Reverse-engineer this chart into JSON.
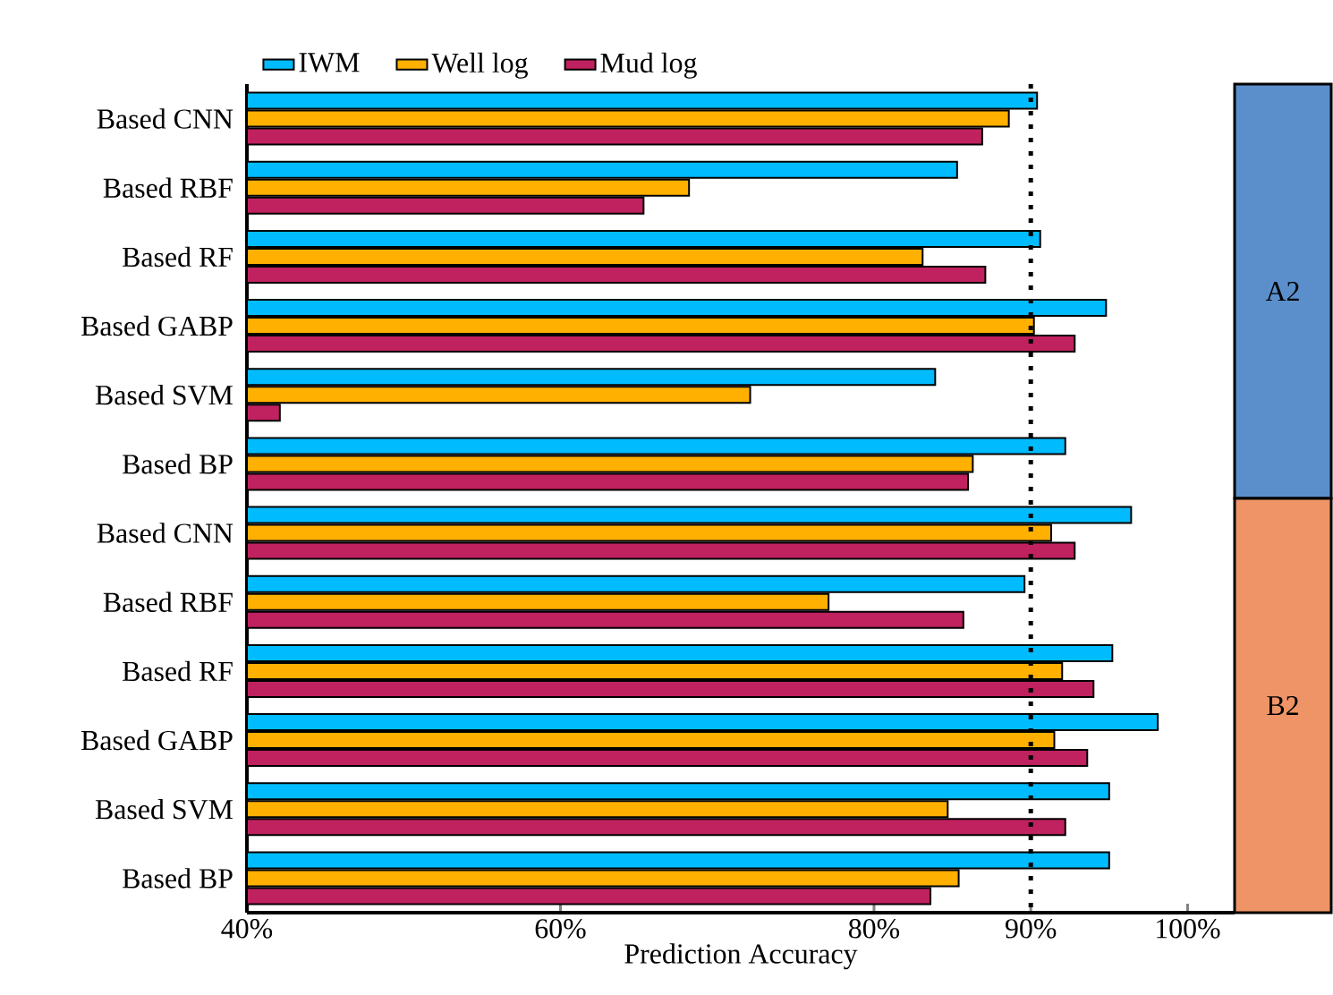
{
  "chart_data": {
    "type": "bar",
    "orientation": "horizontal",
    "xlabel": "Prediction Accuracy",
    "categories": [
      "Based CNN",
      "Based RBF",
      "Based RF",
      "Based GABP",
      "Based SVM",
      "Based BP",
      "Based CNN",
      "Based RBF",
      "Based RF",
      "Based GABP",
      "Based SVM",
      "Based BP"
    ],
    "series": [
      {
        "name": "IWM",
        "color": "#00bcff",
        "values": [
          90.4,
          85.3,
          90.6,
          94.8,
          83.9,
          92.2,
          96.4,
          89.6,
          95.2,
          98.1,
          95.0,
          95.0
        ]
      },
      {
        "name": "Well log",
        "color": "#ffb000",
        "values": [
          88.6,
          68.2,
          83.1,
          90.2,
          72.1,
          86.3,
          91.3,
          77.1,
          92.0,
          91.5,
          84.7,
          85.4
        ]
      },
      {
        "name": "Mud log",
        "color": "#c0215f",
        "values": [
          86.9,
          65.3,
          87.1,
          92.8,
          42.1,
          86.0,
          92.8,
          85.7,
          94.0,
          93.6,
          92.2,
          83.6
        ]
      }
    ],
    "xlim": [
      40,
      103
    ],
    "xticks": [
      {
        "value": 40,
        "label": "40%"
      },
      {
        "value": 60,
        "label": "60%"
      },
      {
        "value": 80,
        "label": "80%"
      },
      {
        "value": 90,
        "label": "90%"
      },
      {
        "value": 100,
        "label": "100%"
      }
    ],
    "ref_lines": [
      {
        "axis": "x",
        "value": 90,
        "line_style": "dotted"
      }
    ],
    "annotations": [
      "A2",
      "B2"
    ],
    "legend": "top"
  }
}
